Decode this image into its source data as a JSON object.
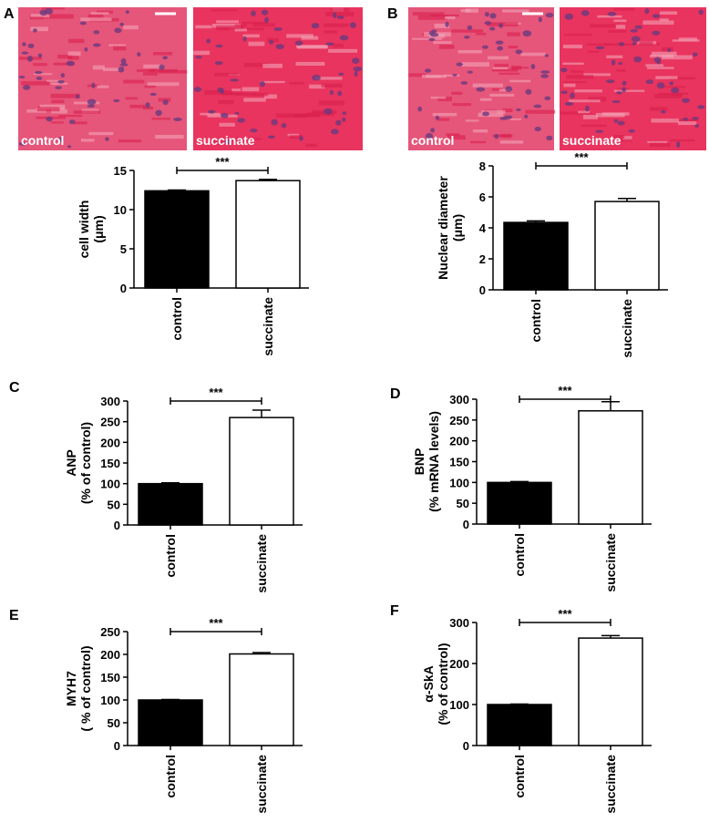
{
  "chart_data": [
    {
      "type": "bar",
      "panel": "A",
      "micrographs": [
        "control",
        "succinate"
      ],
      "ylabel": [
        "cell width",
        "(μm)"
      ],
      "categories": [
        "control",
        "succinate"
      ],
      "values": [
        12.4,
        13.7
      ],
      "errors": [
        0.1,
        0.15
      ],
      "colors": [
        "#000000",
        "#ffffff"
      ],
      "ylim": [
        0,
        15
      ],
      "yticks": [
        0,
        5,
        10,
        15
      ],
      "annotation": "***"
    },
    {
      "type": "bar",
      "panel": "B",
      "micrographs": [
        "control",
        "succinate"
      ],
      "ylabel": [
        "Nuclear diameter",
        "(μm)"
      ],
      "categories": [
        "control",
        "succinate"
      ],
      "values": [
        4.35,
        5.7
      ],
      "errors": [
        0.1,
        0.2
      ],
      "colors": [
        "#000000",
        "#ffffff"
      ],
      "ylim": [
        0,
        8
      ],
      "yticks": [
        0,
        2,
        4,
        6,
        8
      ],
      "annotation": "***"
    },
    {
      "type": "bar",
      "panel": "C",
      "ylabel": [
        "ANP",
        "(% of control)"
      ],
      "categories": [
        "control",
        "succinate"
      ],
      "values": [
        100,
        260
      ],
      "errors": [
        2,
        18
      ],
      "colors": [
        "#000000",
        "#ffffff"
      ],
      "ylim": [
        0,
        300
      ],
      "yticks": [
        0,
        50,
        100,
        150,
        200,
        250,
        300
      ],
      "annotation": "***"
    },
    {
      "type": "bar",
      "panel": "D",
      "ylabel": [
        "BNP",
        "(% mRNA levels)"
      ],
      "categories": [
        "control",
        "succinate"
      ],
      "values": [
        100,
        272
      ],
      "errors": [
        2,
        22
      ],
      "colors": [
        "#000000",
        "#ffffff"
      ],
      "ylim": [
        0,
        300
      ],
      "yticks": [
        0,
        50,
        100,
        150,
        200,
        250,
        300
      ],
      "annotation": "***"
    },
    {
      "type": "bar",
      "panel": "E",
      "ylabel": [
        "MYH7",
        "( % of control)"
      ],
      "categories": [
        "control",
        "succinate"
      ],
      "values": [
        100,
        201
      ],
      "errors": [
        1,
        3
      ],
      "colors": [
        "#000000",
        "#ffffff"
      ],
      "ylim": [
        0,
        250
      ],
      "yticks": [
        0,
        50,
        100,
        150,
        200,
        250
      ],
      "annotation": "***"
    },
    {
      "type": "bar",
      "panel": "F",
      "ylabel": [
        "α-SkA",
        "(% of control)"
      ],
      "categories": [
        "control",
        "succinate"
      ],
      "values": [
        100,
        262
      ],
      "errors": [
        1,
        6
      ],
      "colors": [
        "#000000",
        "#ffffff"
      ],
      "ylim": [
        0,
        300
      ],
      "yticks": [
        0,
        100,
        200,
        300
      ],
      "annotation": "***"
    }
  ]
}
